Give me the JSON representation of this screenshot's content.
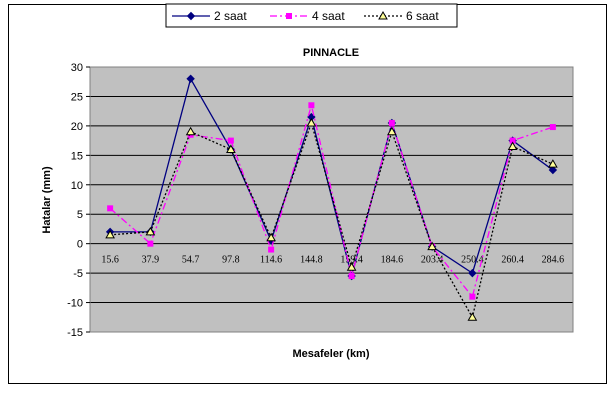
{
  "chart_data": {
    "type": "line",
    "title": "PINNACLE",
    "xlabel": "Mesafeler (km)",
    "ylabel": "Hatalar (mm)",
    "categories": [
      "15.6",
      "37.9",
      "54.7",
      "97.8",
      "114.6",
      "144.8",
      "159.4",
      "184.6",
      "203.4",
      "250.4",
      "260.4",
      "284.6"
    ],
    "ylim": [
      -15,
      30
    ],
    "yticks": [
      "30",
      "25",
      "20",
      "15",
      "10",
      "5",
      "0",
      "-5",
      "-10",
      "-15"
    ],
    "grid": "horizontal",
    "legend_position": "top",
    "plot_background": "#c0c0c0",
    "series": [
      {
        "name": "2 saat",
        "color": "#000080",
        "marker": "diamond",
        "dash": "solid",
        "values": [
          2,
          2,
          28,
          16,
          0.5,
          21.5,
          -5.5,
          20.5,
          -0.5,
          -5,
          17.5,
          12.5
        ]
      },
      {
        "name": "4 saat",
        "color": "#ff00ff",
        "marker": "square",
        "dash": "dashdot",
        "values": [
          6,
          0,
          18.5,
          17.5,
          -1,
          23.5,
          -5.5,
          20.5,
          -0.5,
          -9,
          17.5,
          19.8
        ]
      },
      {
        "name": "6 saat",
        "color": "#000000",
        "marker": "triangle",
        "dash": "dotted",
        "values": [
          1.5,
          2,
          19,
          16,
          1,
          20.5,
          -4,
          19,
          -0.5,
          -12.5,
          16.5,
          13.5
        ]
      }
    ]
  }
}
